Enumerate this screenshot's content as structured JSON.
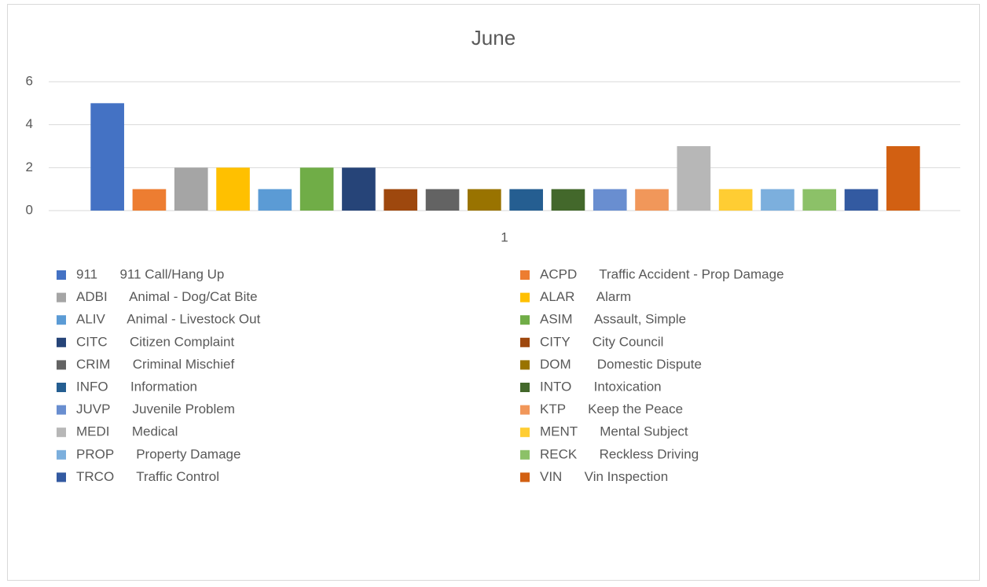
{
  "chart_data": {
    "type": "bar",
    "title": "June",
    "categories": [
      "1"
    ],
    "ylim": [
      0,
      6
    ],
    "yticks": [
      0,
      2,
      4,
      6
    ],
    "grid": true,
    "series": [
      {
        "name": "911      911 Call/Hang Up",
        "color": "#4472c4",
        "values": [
          5
        ]
      },
      {
        "name": "ACPD      Traffic Accident - Prop Damage",
        "color": "#ed7d31",
        "values": [
          1
        ]
      },
      {
        "name": "ADBI      Animal - Dog/Cat Bite",
        "color": "#a5a5a5",
        "values": [
          2
        ]
      },
      {
        "name": "ALAR      Alarm",
        "color": "#ffc000",
        "values": [
          2
        ]
      },
      {
        "name": "ALIV      Animal - Livestock Out",
        "color": "#5b9bd5",
        "values": [
          1
        ]
      },
      {
        "name": "ASIM      Assault, Simple",
        "color": "#70ad47",
        "values": [
          2
        ]
      },
      {
        "name": "CITC      Citizen Complaint",
        "color": "#264478",
        "values": [
          2
        ]
      },
      {
        "name": "CITY      City Council",
        "color": "#9e480e",
        "values": [
          1
        ]
      },
      {
        "name": "CRIM      Criminal Mischief",
        "color": "#636363",
        "values": [
          1
        ]
      },
      {
        "name": "DOM       Domestic Dispute",
        "color": "#997300",
        "values": [
          1
        ]
      },
      {
        "name": "INFO      Information",
        "color": "#255e91",
        "values": [
          1
        ]
      },
      {
        "name": "INTO      Intoxication",
        "color": "#43682b",
        "values": [
          1
        ]
      },
      {
        "name": "JUVP      Juvenile Problem",
        "color": "#698ed0",
        "values": [
          1
        ]
      },
      {
        "name": "KTP      Keep the Peace",
        "color": "#f1975a",
        "values": [
          1
        ]
      },
      {
        "name": "MEDI      Medical",
        "color": "#b7b7b7",
        "values": [
          3
        ]
      },
      {
        "name": "MENT      Mental Subject",
        "color": "#ffcd33",
        "values": [
          1
        ]
      },
      {
        "name": "PROP      Property Damage",
        "color": "#7cafdd",
        "values": [
          1
        ]
      },
      {
        "name": "RECK      Reckless Driving",
        "color": "#8cc168",
        "values": [
          1
        ]
      },
      {
        "name": "TRCO      Traffic Control",
        "color": "#335aa1",
        "values": [
          1
        ]
      },
      {
        "name": "VIN      Vin Inspection",
        "color": "#d26012",
        "values": [
          3
        ]
      }
    ]
  }
}
